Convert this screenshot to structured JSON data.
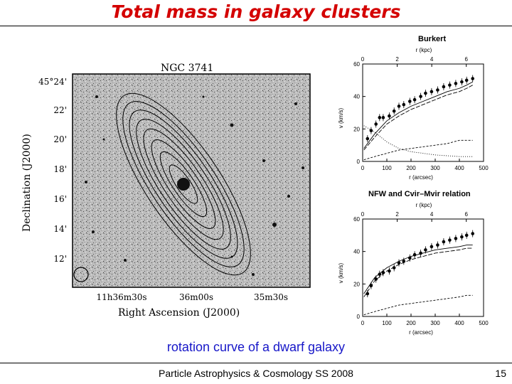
{
  "slide": {
    "title": "Total mass in galaxy clusters",
    "caption": "rotation curve of a dwarf galaxy",
    "footer": "Particle Astrophysics & Cosmology SS 2008",
    "page_number": "15",
    "colors": {
      "title": "#d40000",
      "caption": "#1616c8"
    }
  },
  "map": {
    "object_label": "NGC 3741",
    "ylabel": "Declination (J2000)",
    "xlabel": "Right Ascension (J2000)",
    "dec_ticks": [
      "45°24'",
      "22'",
      "20'",
      "18'",
      "16'",
      "14'",
      "12'"
    ],
    "ra_ticks": [
      "11h36m30s",
      "36m00s",
      "35m30s"
    ]
  },
  "chart_data": [
    {
      "type": "scatter",
      "title": "Burkert",
      "top_axis_label": "r (kpc)",
      "top_ticks": [
        0,
        2,
        4,
        6
      ],
      "xlabel": "r (arcsec)",
      "ylabel": "v (km/s)",
      "xlim": [
        0,
        500
      ],
      "ylim": [
        0,
        60
      ],
      "xticks": [
        0,
        100,
        200,
        300,
        400,
        500
      ],
      "yticks": [
        0,
        20,
        40,
        60
      ],
      "points_r": [
        20,
        35,
        55,
        70,
        85,
        110,
        130,
        150,
        170,
        195,
        215,
        240,
        260,
        285,
        310,
        335,
        360,
        385,
        410,
        430,
        455
      ],
      "points_v": [
        14,
        19,
        23,
        27,
        27,
        28,
        31,
        34,
        35,
        37,
        38,
        40,
        42,
        43,
        44,
        46,
        47,
        48,
        49,
        50,
        51
      ],
      "model_total_v": [
        8,
        17,
        25,
        30,
        34,
        37,
        40,
        43,
        45,
        47,
        49
      ],
      "model_r": [
        5,
        50,
        100,
        150,
        200,
        250,
        300,
        350,
        400,
        430,
        455
      ],
      "model_disk_v": [
        22,
        18,
        12,
        8,
        6,
        5,
        4,
        3.5,
        3,
        3,
        3
      ],
      "model_gas_v": [
        1,
        3,
        5,
        7,
        8,
        9,
        10,
        11,
        13,
        13,
        13
      ],
      "model_halo_v": [
        7,
        15,
        23,
        28,
        32,
        35,
        38,
        41,
        43,
        45,
        47
      ]
    },
    {
      "type": "scatter",
      "title": "NFW and Cvir–Mvir relation",
      "top_axis_label": "r (kpc)",
      "top_ticks": [
        0,
        2,
        4,
        6
      ],
      "xlabel": "r (arcsec)",
      "ylabel": "v (km/s)",
      "xlim": [
        0,
        500
      ],
      "ylim": [
        0,
        60
      ],
      "xticks": [
        0,
        100,
        200,
        300,
        400,
        500
      ],
      "yticks": [
        0,
        20,
        40,
        60
      ],
      "points_r": [
        20,
        35,
        55,
        70,
        85,
        110,
        130,
        150,
        170,
        195,
        215,
        240,
        260,
        285,
        310,
        335,
        360,
        385,
        410,
        430,
        455
      ],
      "points_v": [
        14,
        19,
        23,
        26,
        27,
        28,
        30,
        33,
        34,
        36,
        38,
        39,
        41,
        43,
        44,
        46,
        47,
        48,
        49,
        50,
        51
      ],
      "model_r": [
        5,
        50,
        100,
        150,
        200,
        250,
        300,
        350,
        400,
        430,
        455
      ],
      "model_total_v": [
        14,
        24,
        30,
        34,
        37,
        39,
        41,
        42,
        43,
        44,
        44
      ],
      "model_halo_v": [
        12,
        22,
        28,
        32,
        35,
        37,
        39,
        40,
        41,
        42,
        42
      ],
      "model_gas_v": [
        1,
        3,
        5,
        7,
        8,
        9,
        10,
        11,
        12,
        13,
        13
      ]
    }
  ]
}
